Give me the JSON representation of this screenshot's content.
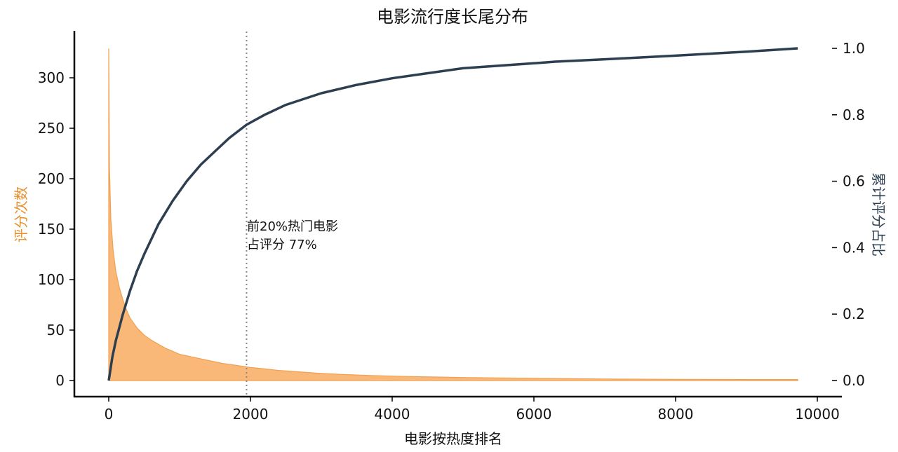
{
  "chart_data": {
    "type": "area",
    "title": "电影流行度长尾分布",
    "xlabel": "电影按热度排名",
    "ylabel_left": "评分次数",
    "ylabel_right": "累计评分占比",
    "xlim": [
      0,
      10000
    ],
    "ylim_left": [
      0,
      340
    ],
    "ylim_right": [
      0,
      1.0
    ],
    "x_ticks": [
      0,
      2000,
      4000,
      6000,
      8000,
      10000
    ],
    "y_left_ticks": [
      0,
      50,
      100,
      150,
      200,
      250,
      300
    ],
    "y_right_ticks": [
      "0.0",
      "0.2",
      "0.4",
      "0.6",
      "0.8",
      "1.0"
    ],
    "grid": false,
    "series": [
      {
        "name": "评分次数",
        "axis": "left",
        "type": "area",
        "x": [
          0,
          10,
          30,
          60,
          100,
          150,
          200,
          250,
          300,
          400,
          500,
          600,
          700,
          800,
          900,
          1000,
          1200,
          1400,
          1600,
          1800,
          2000,
          2200,
          2400,
          2600,
          2800,
          3000,
          3300,
          3700,
          4200,
          5000,
          6300,
          7000,
          8000,
          9000,
          9724
        ],
        "values": [
          329,
          210,
          160,
          130,
          108,
          92,
          80,
          70,
          62,
          52,
          45,
          40,
          36,
          32,
          29,
          26,
          23,
          20,
          17,
          15,
          13,
          11.5,
          10,
          9,
          8,
          7,
          6,
          5,
          4,
          3,
          2,
          1.5,
          1.2,
          1,
          1
        ]
      },
      {
        "name": "累计评分占比",
        "axis": "right",
        "type": "line",
        "x": [
          0,
          50,
          100,
          200,
          300,
          400,
          500,
          700,
          900,
          1100,
          1300,
          1500,
          1700,
          1945,
          2200,
          2500,
          3000,
          3500,
          4000,
          4500,
          5000,
          6000,
          6300,
          7000,
          8000,
          9000,
          9724
        ],
        "values": [
          0,
          0.07,
          0.12,
          0.2,
          0.27,
          0.33,
          0.38,
          0.47,
          0.54,
          0.6,
          0.65,
          0.69,
          0.73,
          0.77,
          0.8,
          0.83,
          0.865,
          0.89,
          0.91,
          0.925,
          0.94,
          0.955,
          0.96,
          0.967,
          0.978,
          0.99,
          1.0
        ]
      }
    ],
    "reference_line": {
      "x": 1945,
      "style": "dotted"
    },
    "annotation": {
      "lines": [
        "前20%热门电影",
        "占评分 77%"
      ],
      "x": 1945,
      "y_right": 0.46
    }
  },
  "colors": {
    "area_fill": "#f9b878",
    "area_edge": "#f0a050",
    "left_axis_label": "#e8902f",
    "line": "#2c3e50",
    "right_axis_label": "#2c3e50",
    "ref_line": "#888888"
  }
}
